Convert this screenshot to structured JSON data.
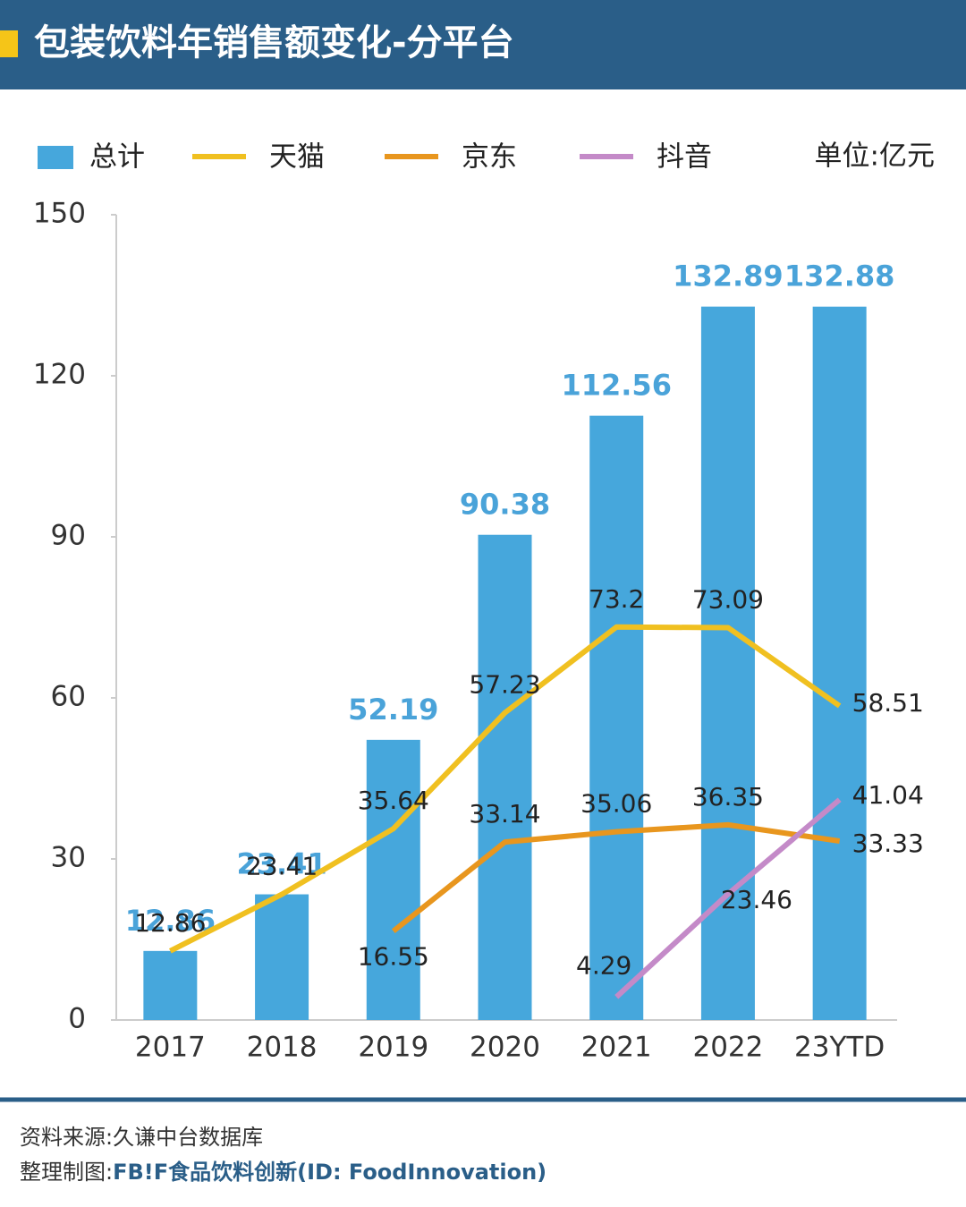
{
  "chart_data": {
    "type": "bar-line",
    "title": "包装饮料年销售额变化-分平台",
    "unit": "单位:亿元",
    "categories": [
      "2017",
      "2018",
      "2019",
      "2020",
      "2021",
      "2022",
      "23YTD"
    ],
    "series": [
      {
        "name": "总计",
        "type": "bar",
        "color": "#46a7dc",
        "values": [
          12.86,
          23.41,
          52.19,
          90.38,
          112.56,
          132.89,
          132.88
        ]
      },
      {
        "name": "天猫",
        "type": "line",
        "color": "#f0c020",
        "values": [
          12.86,
          23.41,
          35.64,
          57.23,
          73.2,
          73.09,
          58.51
        ]
      },
      {
        "name": "京东",
        "type": "line",
        "color": "#e8961e",
        "values": [
          null,
          null,
          16.55,
          33.14,
          35.06,
          36.35,
          33.33
        ]
      },
      {
        "name": "抖音",
        "type": "line",
        "color": "#c48ac8",
        "values": [
          null,
          null,
          null,
          null,
          4.29,
          23.46,
          41.04
        ]
      }
    ],
    "ylim": [
      0,
      150
    ],
    "yticks": [
      0,
      30,
      60,
      90,
      120,
      150
    ],
    "grid": false
  },
  "footer": {
    "source": "资料来源:久谦中台数据库",
    "credit_label": "整理制图:",
    "credit_brand": "FB!F",
    "credit_text": "食品饮料创新(ID: FoodInnovation)"
  }
}
